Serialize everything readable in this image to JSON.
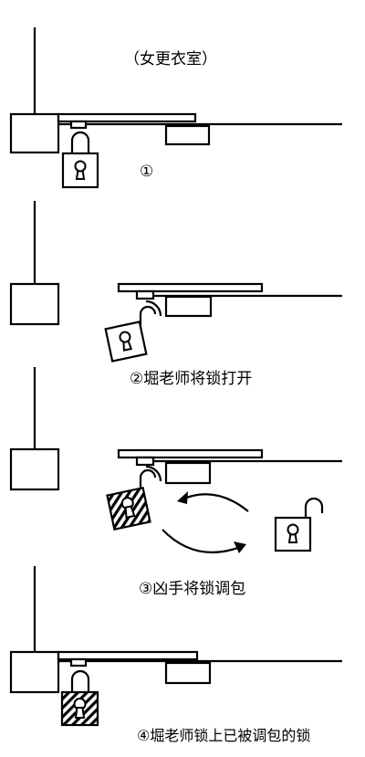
{
  "location_label": "（女更衣室）",
  "steps": [
    {
      "label": "①"
    },
    {
      "label": "②堀老师将锁打开"
    },
    {
      "label": "③凶手将锁调包"
    },
    {
      "label": "④堀老师锁上已被调包的锁"
    }
  ],
  "colors": {
    "ink": "#000000",
    "background": "#ffffff"
  }
}
